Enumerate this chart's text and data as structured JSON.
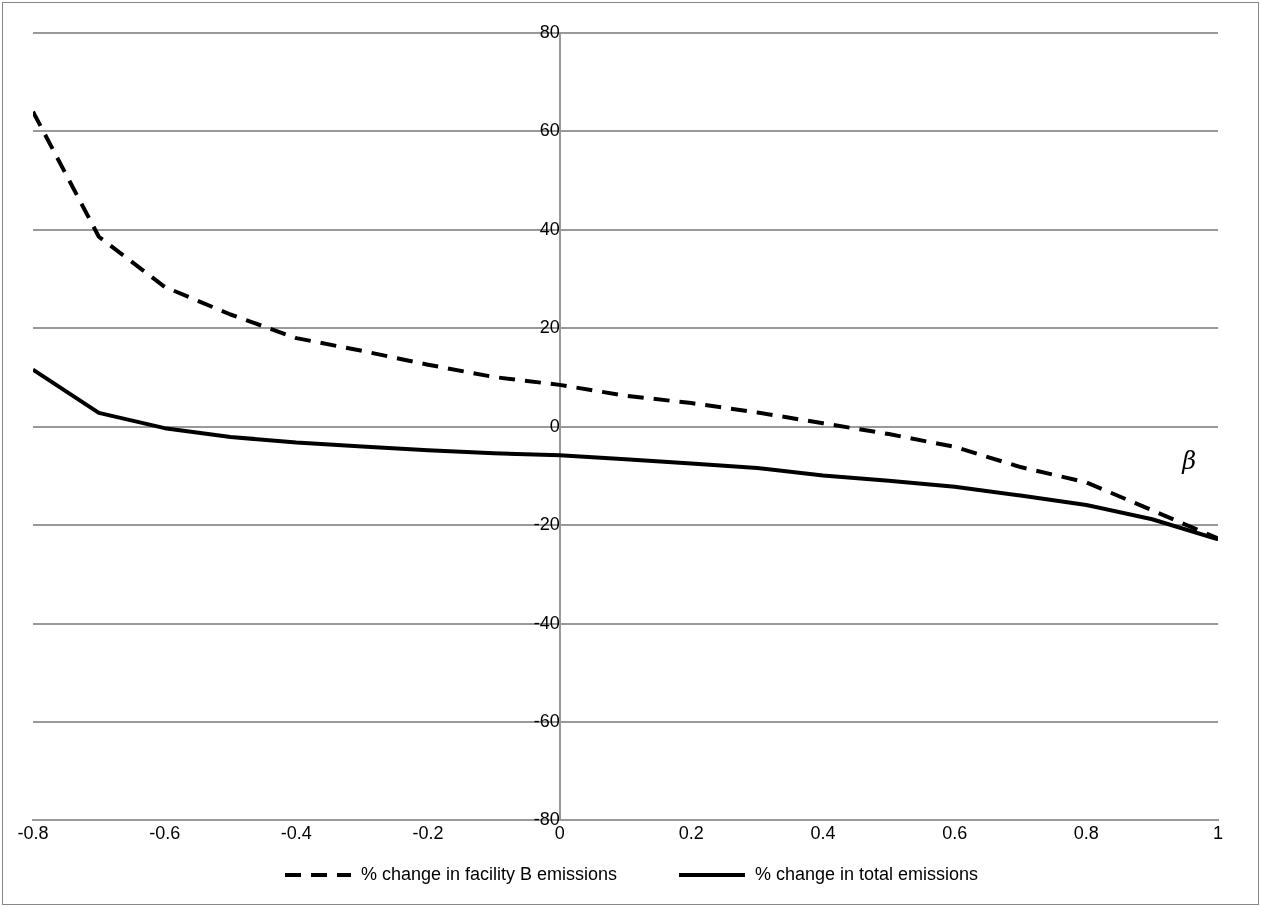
{
  "chart_data": {
    "type": "line",
    "xlabel": "β",
    "x": [
      -0.8,
      -0.7,
      -0.6,
      -0.5,
      -0.4,
      -0.3,
      -0.2,
      -0.1,
      0,
      0.1,
      0.2,
      0.3,
      0.4,
      0.5,
      0.6,
      0.7,
      0.8,
      0.9,
      1
    ],
    "series": [
      {
        "name": "% change in facility B emissions",
        "color": "#000000",
        "line_style": "dashed",
        "values": [
          64,
          38.6,
          28.4,
          22.8,
          18,
          15.4,
          12.6,
          10.1,
          8.5,
          6.3,
          4.8,
          2.9,
          0.7,
          -1.5,
          -4.1,
          -8.2,
          -11.3,
          -17,
          -22.7
        ]
      },
      {
        "name": "% change in total emissions",
        "color": "#000000",
        "line_style": "solid",
        "values": [
          11.6,
          2.8,
          -0.3,
          -2.1,
          -3.2,
          -4,
          -4.8,
          -5.4,
          -5.8,
          -6.6,
          -7.5,
          -8.4,
          -9.9,
          -11,
          -12.2,
          -14,
          -15.9,
          -18.8,
          -22.9
        ]
      }
    ],
    "xlim": [
      -0.8,
      1
    ],
    "xticks": [
      -0.8,
      -0.6,
      -0.4,
      -0.2,
      0,
      0.2,
      0.4,
      0.6,
      0.8,
      1
    ],
    "ylim": [
      -80,
      80
    ],
    "yticks": [
      -80,
      -60,
      -40,
      -20,
      0,
      20,
      40,
      60,
      80
    ],
    "grid": "y",
    "legend": "bottom",
    "marker": "none"
  }
}
